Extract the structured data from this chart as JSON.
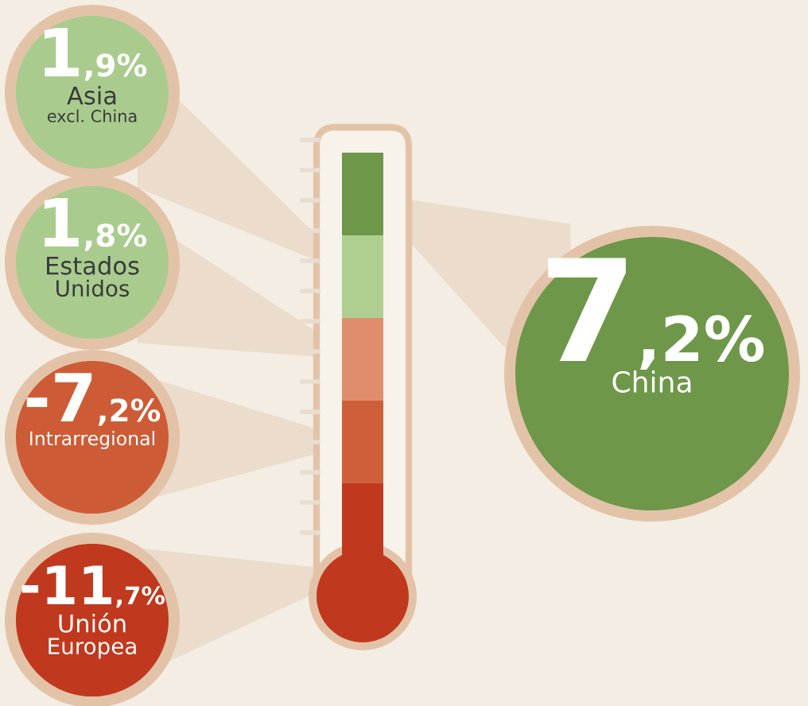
{
  "chart_data": {
    "type": "other",
    "categories": [
      "Asia\nexcl. China",
      "Estados\nUnidos",
      "Intrarregional",
      "Unión\nEuropea",
      "China"
    ],
    "values": [
      1.9,
      1.8,
      -7.2,
      -11.7,
      7.2
    ],
    "value_labels": [
      "1,9%",
      "1,8%",
      "-7,2%",
      "-11,7%",
      "7,2%"
    ],
    "colors": [
      "#a9cc8e",
      "#a9cc8e",
      "#cd5c36",
      "#c0391e",
      "#6e974a"
    ]
  }
}
